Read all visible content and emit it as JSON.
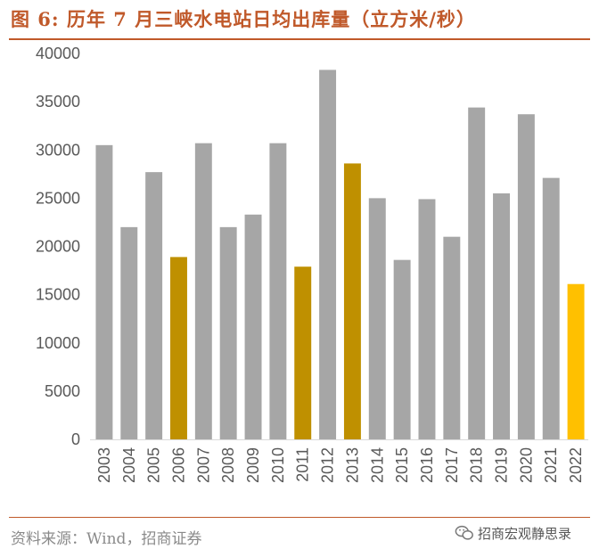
{
  "header": {
    "title": "图 6:  历年 7 月三峡水电站日均出库量（立方米/秒）"
  },
  "footer": {
    "source": "资料来源：Wind，招商证券",
    "watermark": "招商宏观静思录"
  },
  "colors": {
    "gray": "#a6a6a6",
    "highlight": "#bf9000",
    "current": "#ffc000",
    "accent": "#c0592a"
  },
  "chart_data": {
    "type": "bar",
    "title": "历年 7 月三峡水电站日均出库量（立方米/秒）",
    "xlabel": "",
    "ylabel": "",
    "ylim": [
      0,
      40000
    ],
    "yticks": [
      0,
      5000,
      10000,
      15000,
      20000,
      25000,
      30000,
      35000,
      40000
    ],
    "categories": [
      "2003",
      "2004",
      "2005",
      "2006",
      "2007",
      "2008",
      "2009",
      "2010",
      "2011",
      "2012",
      "2013",
      "2014",
      "2015",
      "2016",
      "2017",
      "2018",
      "2019",
      "2020",
      "2021",
      "2022"
    ],
    "values": [
      30500,
      22000,
      27700,
      18900,
      30700,
      22000,
      23300,
      30700,
      17900,
      38300,
      28600,
      25000,
      18600,
      24900,
      21000,
      34400,
      25500,
      33700,
      27100,
      16100
    ],
    "bar_colors": [
      "gray",
      "gray",
      "gray",
      "highlight",
      "gray",
      "gray",
      "gray",
      "gray",
      "highlight",
      "gray",
      "highlight",
      "gray",
      "gray",
      "gray",
      "gray",
      "gray",
      "gray",
      "gray",
      "gray",
      "current"
    ]
  }
}
